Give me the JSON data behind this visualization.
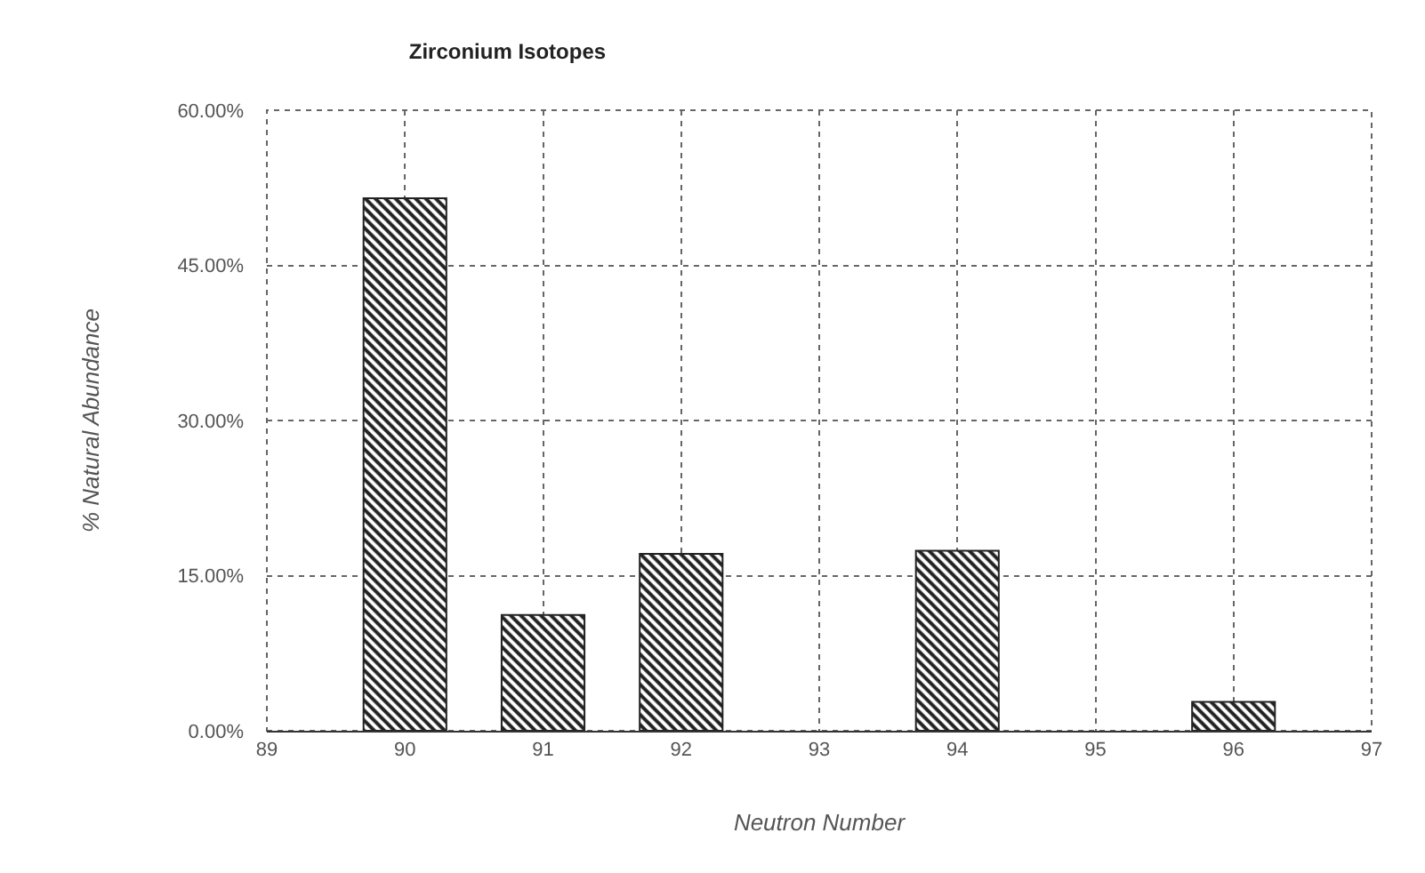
{
  "chart_data": {
    "type": "bar",
    "title": "Zirconium Isotopes",
    "xlabel": "Neutron Number",
    "ylabel": "% Natural Abundance",
    "x": [
      90,
      91,
      92,
      94,
      96
    ],
    "values": [
      51.5,
      11.2,
      17.1,
      17.4,
      2.8
    ],
    "color": "#222222",
    "xlim": [
      89,
      97
    ],
    "xticks": [
      89,
      90,
      91,
      92,
      93,
      94,
      95,
      96,
      97
    ],
    "ylim": [
      0,
      60
    ],
    "yticks": [
      {
        "value": 0,
        "label": "0.00%"
      },
      {
        "value": 15,
        "label": "15.00%"
      },
      {
        "value": 30,
        "label": "30.00%"
      },
      {
        "value": 45,
        "label": "45.00%"
      },
      {
        "value": 60,
        "label": "60.00%"
      }
    ],
    "grid": true
  }
}
